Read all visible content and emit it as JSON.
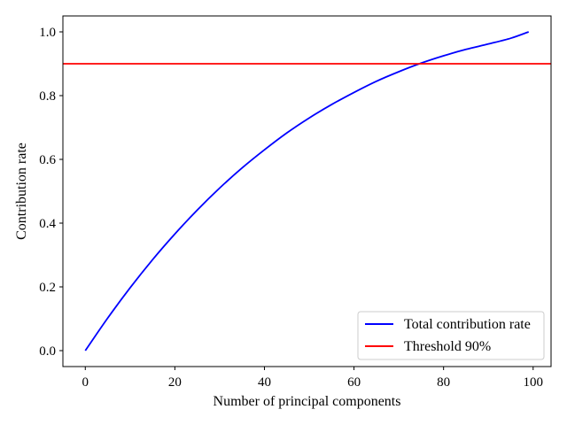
{
  "chart_data": {
    "type": "line",
    "title": "",
    "xlabel": "Number of principal components",
    "ylabel": "Contribution rate",
    "xlim": [
      -5,
      104
    ],
    "ylim": [
      -0.05,
      1.05
    ],
    "x_ticks": [
      0,
      20,
      40,
      60,
      80,
      100
    ],
    "x_tick_labels": [
      "0",
      "20",
      "40",
      "60",
      "80",
      "100"
    ],
    "y_ticks": [
      0.0,
      0.2,
      0.4,
      0.6,
      0.8,
      1.0
    ],
    "y_tick_labels": [
      "0.0",
      "0.2",
      "0.4",
      "0.6",
      "0.8",
      "1.0"
    ],
    "grid": false,
    "legend_position": "lower-right",
    "series": [
      {
        "name": "Total contribution rate",
        "color": "#0000ff",
        "x": [
          0,
          5,
          10,
          15,
          20,
          25,
          30,
          35,
          40,
          45,
          50,
          55,
          60,
          65,
          70,
          75,
          80,
          85,
          90,
          95,
          99
        ],
        "y": [
          0.0,
          0.102,
          0.197,
          0.285,
          0.366,
          0.441,
          0.51,
          0.573,
          0.63,
          0.683,
          0.73,
          0.772,
          0.81,
          0.845,
          0.875,
          0.902,
          0.925,
          0.945,
          0.962,
          0.98,
          1.0
        ]
      },
      {
        "name": "Threshold 90%",
        "color": "#ff0000",
        "type": "hline",
        "y": 0.9
      }
    ]
  }
}
